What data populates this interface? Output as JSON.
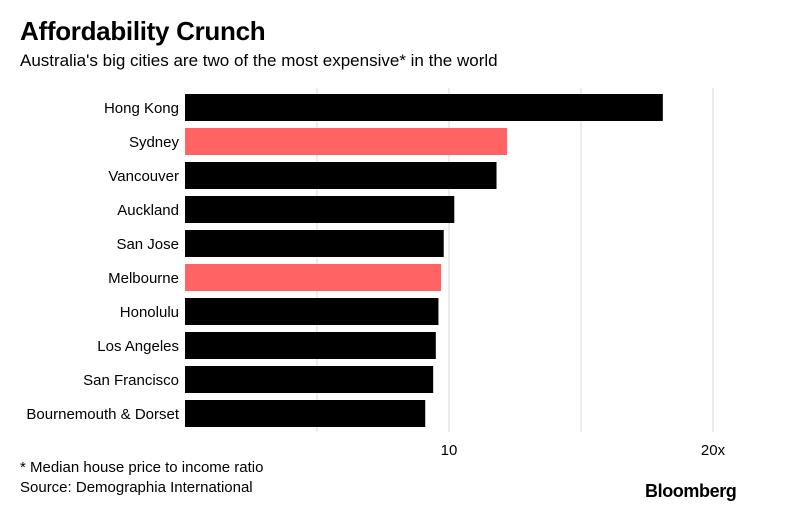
{
  "header": {
    "title": "Affordability Crunch",
    "subtitle": "Australia's big cities are two of the most expensive* in the world"
  },
  "footer": {
    "note": "* Median house price to income ratio",
    "source": "Source: Demographia International",
    "brand": "Bloomberg"
  },
  "colors": {
    "default_bar": "#000000",
    "highlight_bar": "#ff6363",
    "grid": "#d9d9d9"
  },
  "chart_data": {
    "type": "bar",
    "orientation": "horizontal",
    "title": "Affordability Crunch",
    "subtitle": "Australia's big cities are two of the most expensive* in the world",
    "categories": [
      "Hong Kong",
      "Sydney",
      "Vancouver",
      "Auckland",
      "San Jose",
      "Melbourne",
      "Honolulu",
      "Los Angeles",
      "San Francisco",
      "Bournemouth & Dorset"
    ],
    "values": [
      18.1,
      12.2,
      11.8,
      10.2,
      9.8,
      9.7,
      9.6,
      9.5,
      9.4,
      9.1
    ],
    "highlighted": [
      "Sydney",
      "Melbourne"
    ],
    "xlim": [
      0,
      20
    ],
    "ticks": [
      {
        "value": 5,
        "label": ""
      },
      {
        "value": 10,
        "label": "10"
      },
      {
        "value": 15,
        "label": ""
      },
      {
        "value": 20,
        "label": "20x"
      }
    ],
    "grid": true,
    "xlabel": "",
    "ylabel": ""
  }
}
